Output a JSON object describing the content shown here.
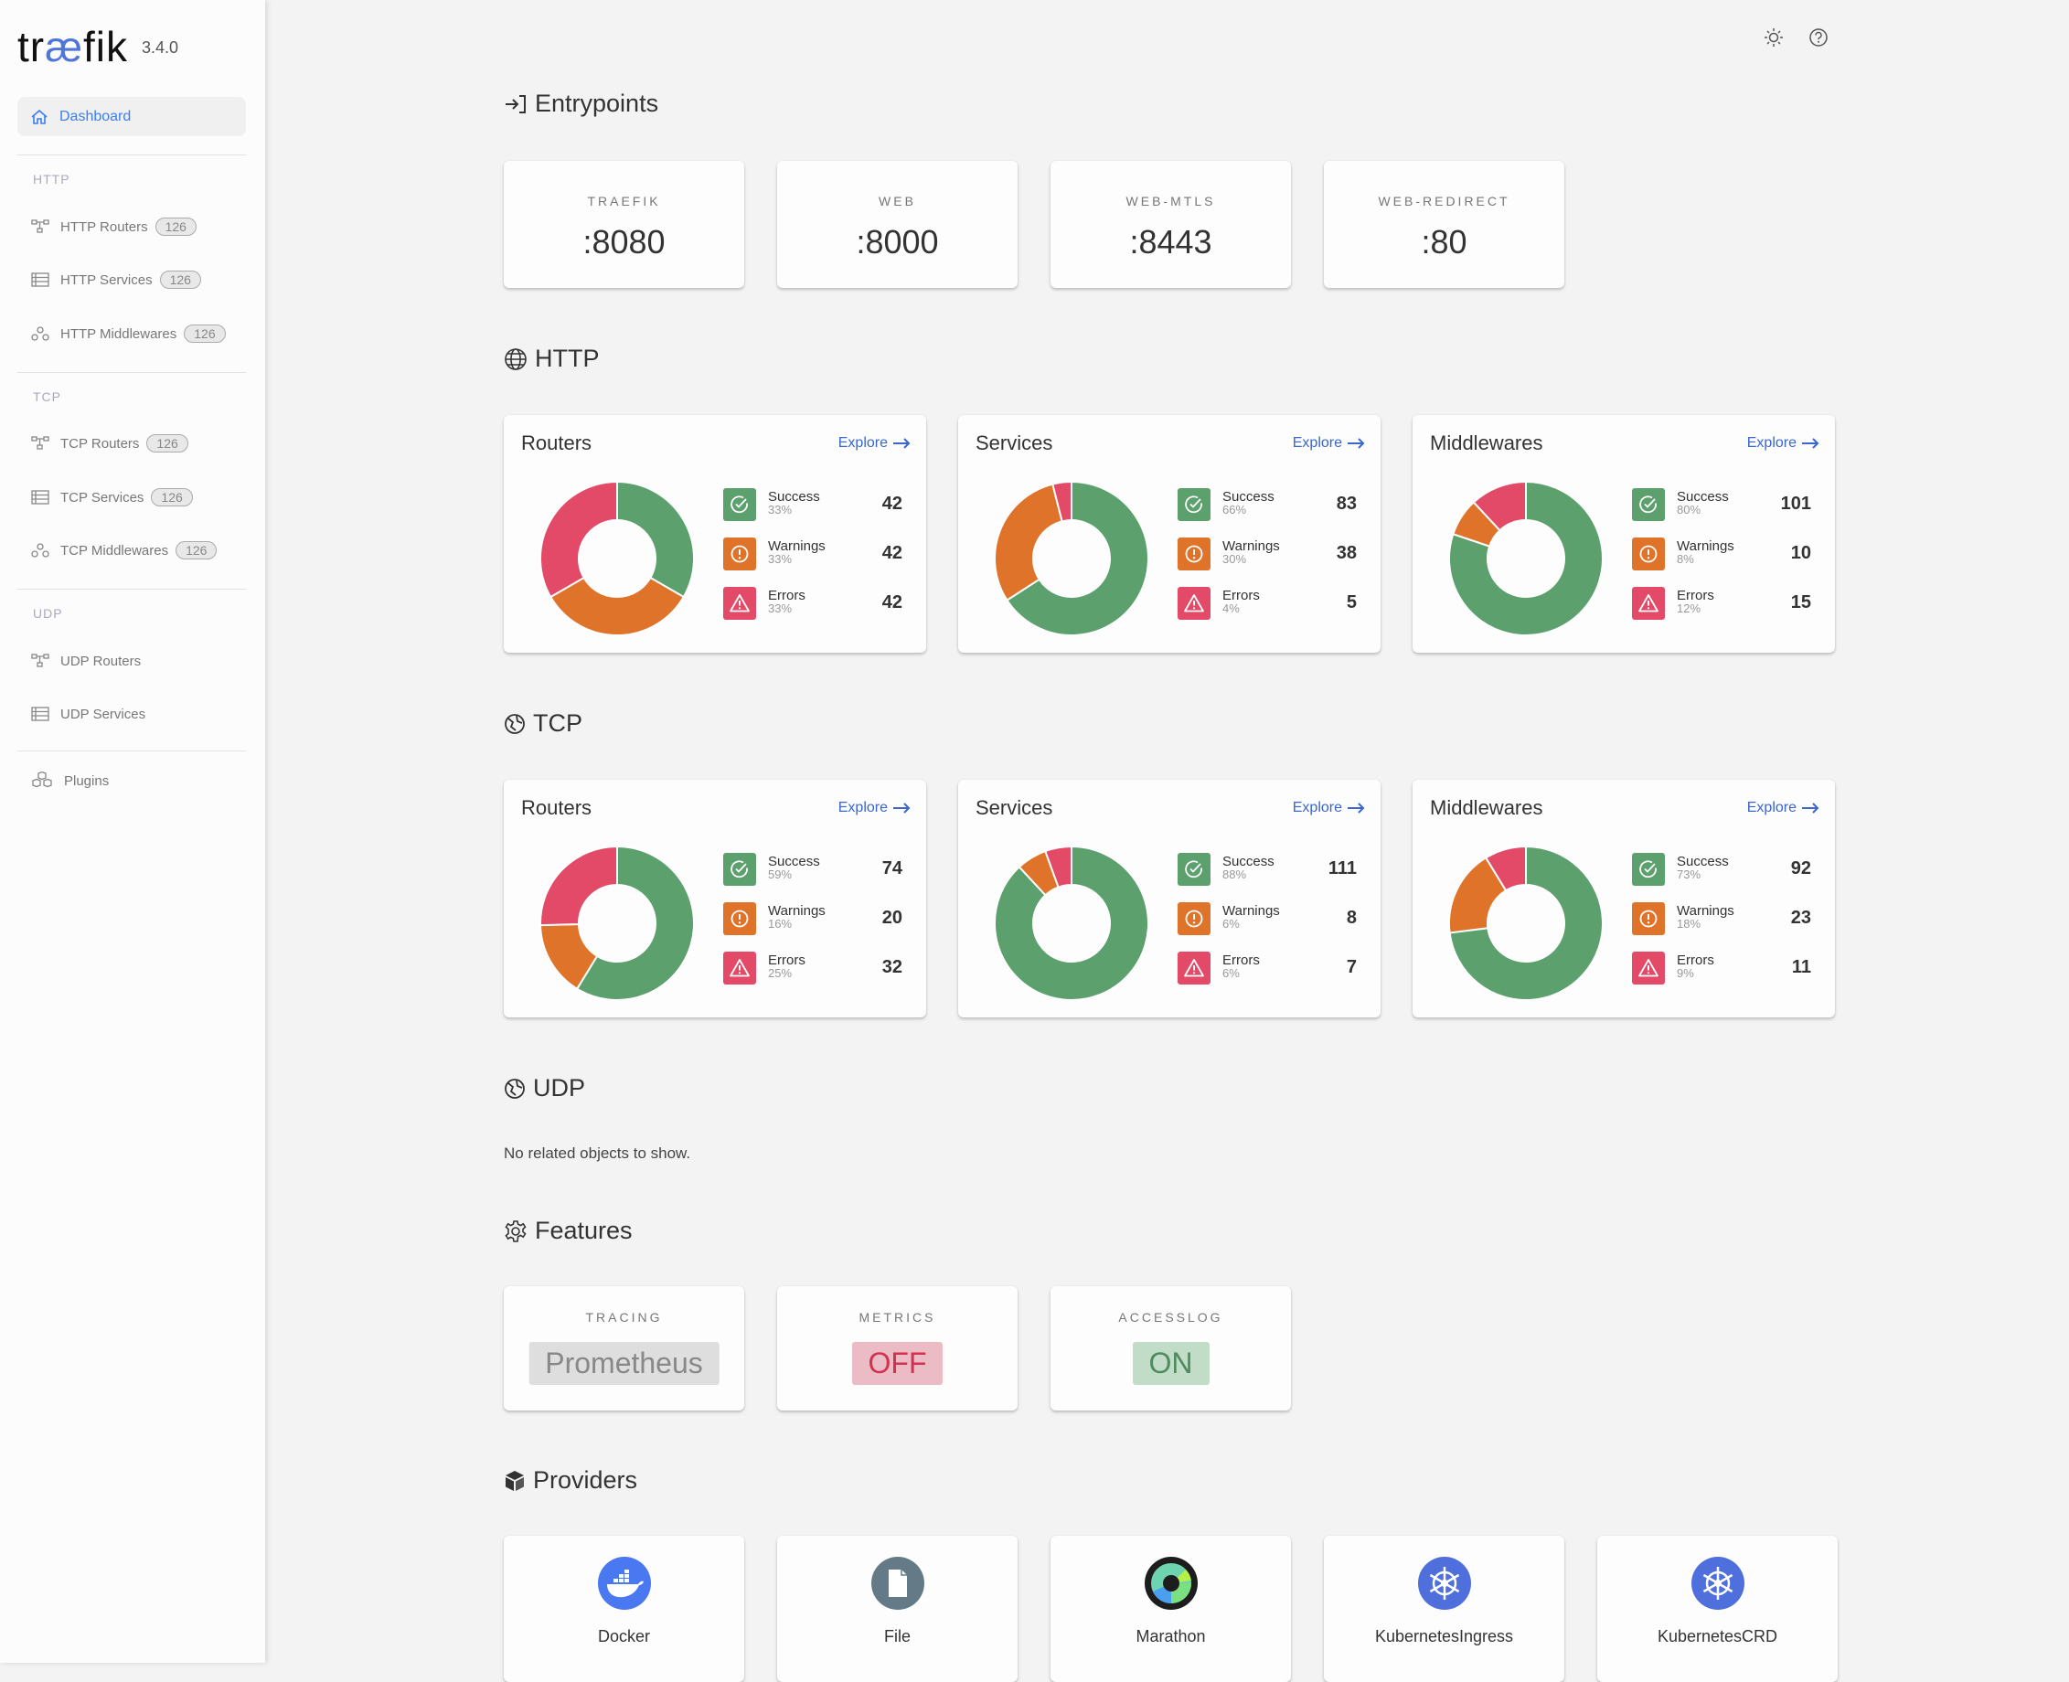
{
  "app": {
    "logo_text": "traefik",
    "version": "3.4.0"
  },
  "colors": {
    "success": "#5ca06e",
    "warning": "#e0732a",
    "error": "#e34a67",
    "accent": "#3a66d0",
    "nav_active": "#3b7ff0"
  },
  "sidebar": {
    "dashboard": {
      "label": "Dashboard",
      "icon": "home-icon"
    },
    "sections": [
      {
        "label": "HTTP",
        "items": [
          {
            "label": "HTTP Routers",
            "count": "126",
            "icon": "routers-icon"
          },
          {
            "label": "HTTP Services",
            "count": "126",
            "icon": "services-icon"
          },
          {
            "label": "HTTP Middlewares",
            "count": "126",
            "icon": "middlewares-icon"
          }
        ]
      },
      {
        "label": "TCP",
        "items": [
          {
            "label": "TCP Routers",
            "count": "126",
            "icon": "routers-icon"
          },
          {
            "label": "TCP Services",
            "count": "126",
            "icon": "services-icon"
          },
          {
            "label": "TCP Middlewares",
            "count": "126",
            "icon": "middlewares-icon"
          }
        ]
      },
      {
        "label": "UDP",
        "items": [
          {
            "label": "UDP Routers",
            "icon": "routers-icon"
          },
          {
            "label": "UDP Services",
            "icon": "services-icon"
          }
        ]
      }
    ],
    "plugins": {
      "label": "Plugins",
      "icon": "plugins-icon"
    }
  },
  "header": {
    "icons": [
      "theme-sun-icon",
      "help-icon"
    ]
  },
  "entrypoints": {
    "title": "Entrypoints",
    "items": [
      {
        "name": "TRAEFIK",
        "port": ":8080"
      },
      {
        "name": "WEB",
        "port": ":8000"
      },
      {
        "name": "WEB-MTLS",
        "port": ":8443"
      },
      {
        "name": "WEB-REDIRECT",
        "port": ":80"
      }
    ]
  },
  "legend_labels": {
    "success": "Success",
    "warnings": "Warnings",
    "errors": "Errors"
  },
  "explore_label": "Explore",
  "http": {
    "title": "HTTP",
    "cards": [
      {
        "title": "Routers",
        "success": 42,
        "success_pct": "33%",
        "warnings": 42,
        "warnings_pct": "33%",
        "errors": 42,
        "errors_pct": "33%"
      },
      {
        "title": "Services",
        "success": 83,
        "success_pct": "66%",
        "warnings": 38,
        "warnings_pct": "30%",
        "errors": 5,
        "errors_pct": "4%"
      },
      {
        "title": "Middlewares",
        "success": 101,
        "success_pct": "80%",
        "warnings": 10,
        "warnings_pct": "8%",
        "errors": 15,
        "errors_pct": "12%"
      }
    ]
  },
  "tcp": {
    "title": "TCP",
    "cards": [
      {
        "title": "Routers",
        "success": 74,
        "success_pct": "59%",
        "warnings": 20,
        "warnings_pct": "16%",
        "errors": 32,
        "errors_pct": "25%"
      },
      {
        "title": "Services",
        "success": 111,
        "success_pct": "88%",
        "warnings": 8,
        "warnings_pct": "6%",
        "errors": 7,
        "errors_pct": "6%"
      },
      {
        "title": "Middlewares",
        "success": 92,
        "success_pct": "73%",
        "warnings": 23,
        "warnings_pct": "18%",
        "errors": 11,
        "errors_pct": "9%"
      }
    ]
  },
  "udp": {
    "title": "UDP",
    "empty_text": "No related objects to show."
  },
  "features": {
    "title": "Features",
    "items": [
      {
        "name": "TRACING",
        "value": "Prometheus",
        "state": "neutral"
      },
      {
        "name": "METRICS",
        "value": "OFF",
        "state": "off"
      },
      {
        "name": "ACCESSLOG",
        "value": "ON",
        "state": "on"
      }
    ]
  },
  "providers": {
    "title": "Providers",
    "items": [
      {
        "name": "Docker",
        "icon": "docker-icon"
      },
      {
        "name": "File",
        "icon": "file-icon"
      },
      {
        "name": "Marathon",
        "icon": "marathon-icon"
      },
      {
        "name": "KubernetesIngress",
        "icon": "kubernetes-icon"
      },
      {
        "name": "KubernetesCRD",
        "icon": "kubernetes-icon"
      }
    ]
  }
}
